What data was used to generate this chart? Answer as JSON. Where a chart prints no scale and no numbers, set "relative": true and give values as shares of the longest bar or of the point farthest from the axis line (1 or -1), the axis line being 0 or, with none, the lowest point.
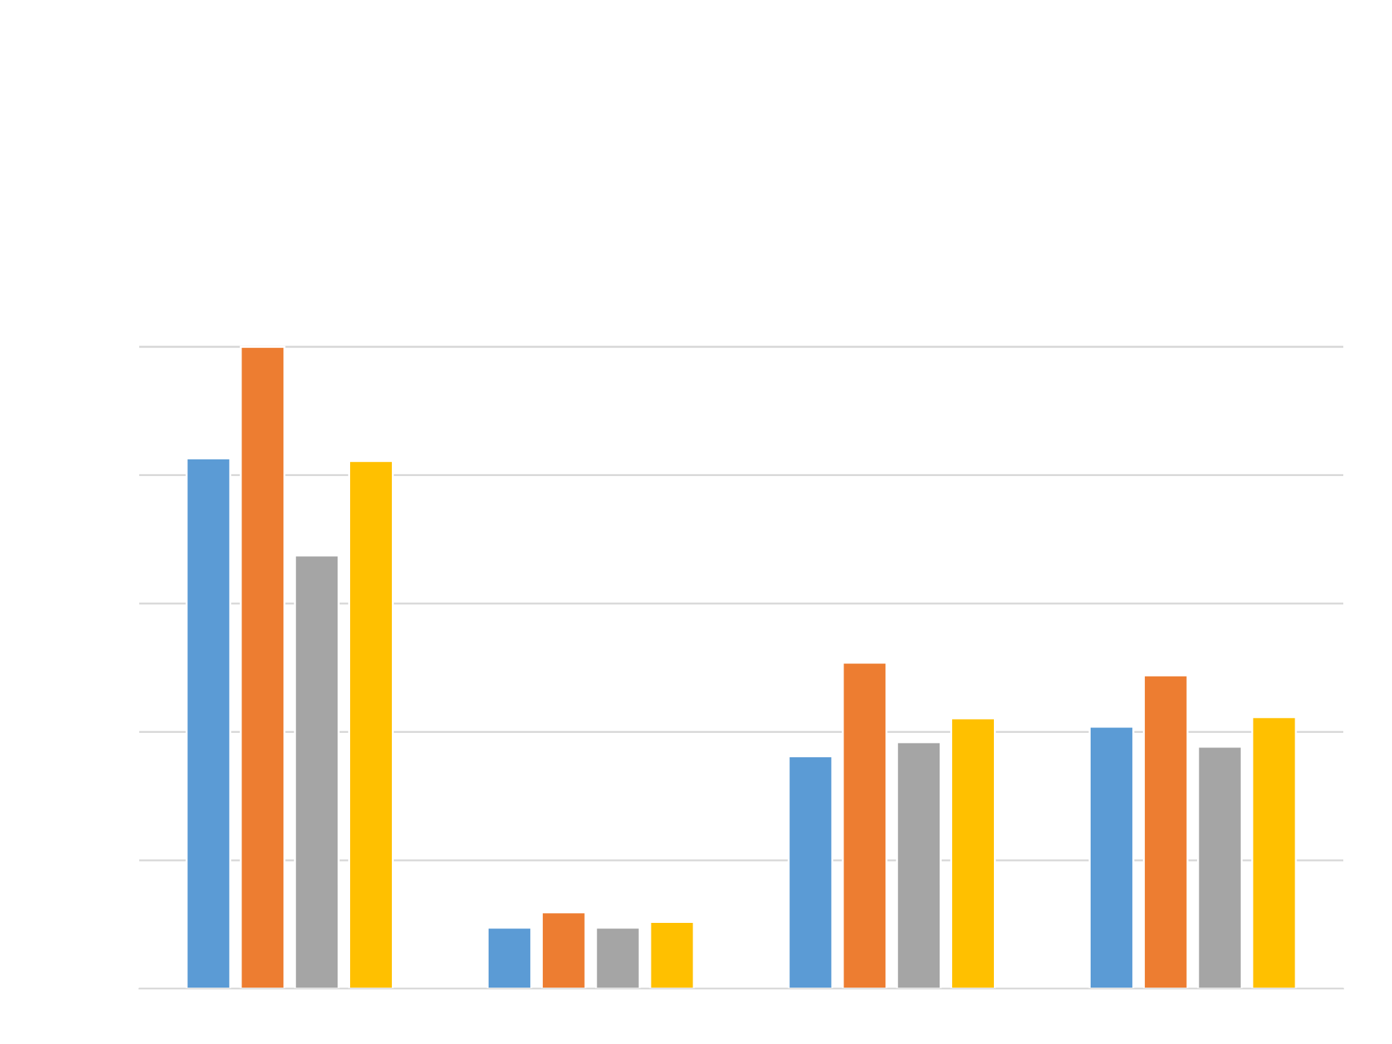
{
  "chart_data": {
    "type": "bar",
    "relative": true,
    "grid": "y",
    "categories": [
      null,
      null,
      null,
      null
    ],
    "series": [
      {
        "color": "#5b9bd5",
        "values": [
          0.826,
          0.095,
          0.362,
          0.408
        ]
      },
      {
        "color": "#ed7d31",
        "values": [
          1,
          0.119,
          0.508,
          0.488
        ]
      },
      {
        "color": "#a5a5a5",
        "values": [
          0.675,
          0.095,
          0.384,
          0.377
        ]
      },
      {
        "color": "#ffc000",
        "values": [
          0.822,
          0.104,
          0.421,
          0.423
        ]
      }
    ]
  }
}
